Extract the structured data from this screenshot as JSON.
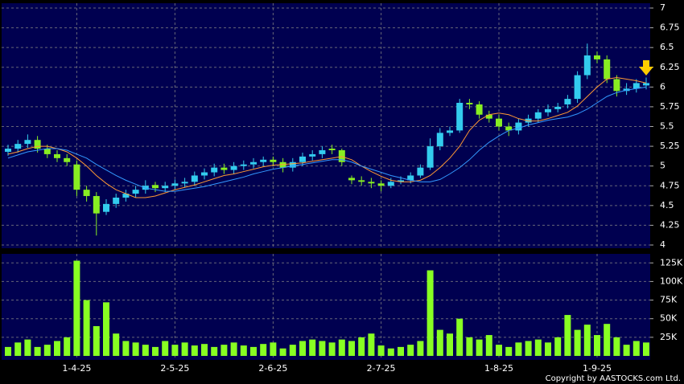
{
  "chart_data": [
    {
      "type": "candlestick",
      "categories": [
        null,
        null,
        null,
        null,
        null,
        null,
        null,
        "1-4-25",
        null,
        null,
        null,
        null,
        null,
        null,
        null,
        null,
        null,
        "2-5-25",
        null,
        null,
        null,
        null,
        null,
        null,
        null,
        null,
        null,
        "2-6-25",
        null,
        null,
        null,
        null,
        null,
        null,
        null,
        null,
        null,
        null,
        "2-7-25",
        null,
        null,
        null,
        null,
        null,
        null,
        null,
        null,
        null,
        null,
        null,
        "1-8-25",
        null,
        null,
        null,
        null,
        null,
        null,
        null,
        null,
        null,
        "1-9-25",
        null,
        null,
        null,
        null,
        null
      ],
      "open": [
        5.18,
        5.22,
        5.28,
        5.33,
        5.22,
        5.15,
        5.1,
        5.02,
        4.7,
        4.62,
        4.42,
        4.52,
        4.6,
        4.65,
        4.7,
        4.76,
        4.72,
        4.75,
        4.78,
        4.8,
        4.88,
        4.92,
        4.98,
        4.95,
        5.0,
        5.02,
        5.05,
        5.08,
        5.05,
        4.98,
        5.05,
        5.12,
        5.15,
        5.22,
        5.2,
        4.85,
        4.82,
        4.8,
        4.78,
        4.75,
        4.8,
        4.82,
        4.88,
        4.98,
        5.25,
        5.42,
        5.45,
        5.8,
        5.78,
        5.65,
        5.6,
        5.5,
        5.45,
        5.55,
        5.6,
        5.68,
        5.72,
        5.78,
        5.85,
        6.15,
        6.4,
        6.35,
        6.1,
        5.95,
        5.98,
        6.02
      ],
      "high": [
        5.27,
        5.33,
        5.4,
        5.38,
        5.27,
        5.2,
        5.15,
        5.07,
        4.75,
        4.67,
        4.58,
        4.65,
        4.7,
        4.75,
        4.82,
        4.8,
        4.8,
        4.83,
        4.85,
        4.93,
        4.97,
        5.03,
        5.03,
        5.05,
        5.07,
        5.1,
        5.12,
        5.12,
        5.1,
        5.1,
        5.17,
        5.2,
        5.25,
        5.27,
        5.22,
        4.88,
        4.87,
        4.85,
        4.82,
        4.85,
        4.87,
        4.92,
        5.02,
        5.35,
        5.48,
        5.5,
        5.85,
        5.85,
        5.82,
        5.7,
        5.65,
        5.55,
        5.6,
        5.65,
        5.72,
        5.78,
        5.8,
        5.9,
        6.2,
        6.55,
        6.45,
        6.4,
        6.15,
        6.05,
        6.1,
        6.12
      ],
      "low": [
        5.13,
        5.17,
        5.23,
        5.17,
        5.1,
        5.05,
        5.0,
        4.62,
        4.55,
        4.12,
        4.38,
        4.47,
        4.55,
        4.6,
        4.65,
        4.67,
        4.67,
        4.7,
        4.73,
        4.75,
        4.83,
        4.87,
        4.9,
        4.9,
        4.95,
        4.97,
        5.0,
        5.0,
        4.92,
        4.93,
        5.0,
        5.07,
        5.1,
        5.15,
        5.0,
        4.77,
        4.75,
        4.72,
        4.68,
        4.72,
        4.77,
        4.78,
        4.85,
        4.95,
        5.2,
        5.38,
        5.42,
        5.72,
        5.6,
        5.55,
        5.45,
        5.38,
        5.4,
        5.5,
        5.55,
        5.63,
        5.68,
        5.73,
        5.8,
        6.1,
        6.3,
        6.05,
        5.88,
        5.9,
        5.93,
        5.97
      ],
      "close": [
        5.22,
        5.28,
        5.33,
        5.22,
        5.15,
        5.1,
        5.05,
        4.7,
        4.62,
        4.4,
        4.52,
        4.6,
        4.65,
        4.7,
        4.75,
        4.72,
        4.75,
        4.78,
        4.8,
        4.88,
        4.92,
        4.98,
        4.95,
        5.0,
        5.02,
        5.05,
        5.08,
        5.05,
        4.98,
        5.05,
        5.12,
        5.15,
        5.2,
        5.2,
        5.05,
        4.82,
        4.8,
        4.78,
        4.75,
        4.8,
        4.82,
        4.88,
        4.98,
        5.25,
        5.42,
        5.45,
        5.8,
        5.78,
        5.65,
        5.6,
        5.5,
        5.45,
        5.55,
        5.6,
        5.68,
        5.72,
        5.75,
        5.85,
        6.15,
        6.4,
        6.35,
        6.1,
        5.95,
        5.98,
        6.05,
        6.05
      ],
      "up_color": "#33ccee",
      "down_color": "#88ee22",
      "series": [
        {
          "color": "#ff9933",
          "values": [
            5.15,
            5.18,
            5.22,
            5.25,
            5.25,
            5.22,
            5.18,
            5.1,
            5.0,
            4.88,
            4.78,
            4.7,
            4.65,
            4.6,
            4.6,
            4.62,
            4.66,
            4.7,
            4.73,
            4.76,
            4.8,
            4.84,
            4.88,
            4.9,
            4.93,
            4.96,
            4.99,
            5.01,
            5.02,
            5.03,
            5.04,
            5.06,
            5.08,
            5.1,
            5.12,
            5.08,
            5.0,
            4.93,
            4.87,
            4.82,
            4.8,
            4.8,
            4.82,
            4.88,
            4.98,
            5.1,
            5.25,
            5.45,
            5.58,
            5.65,
            5.67,
            5.65,
            5.6,
            5.57,
            5.57,
            5.6,
            5.64,
            5.68,
            5.76,
            5.88,
            6.0,
            6.1,
            6.12,
            6.1,
            6.08,
            6.05
          ]
        },
        {
          "color": "#3399ff",
          "values": [
            5.1,
            5.14,
            5.18,
            5.2,
            5.22,
            5.22,
            5.2,
            5.15,
            5.1,
            5.02,
            4.95,
            4.88,
            4.82,
            4.77,
            4.72,
            4.7,
            4.68,
            4.68,
            4.7,
            4.72,
            4.74,
            4.77,
            4.8,
            4.83,
            4.86,
            4.9,
            4.93,
            4.96,
            4.98,
            5.0,
            5.02,
            5.04,
            5.06,
            5.08,
            5.08,
            5.05,
            5.0,
            4.96,
            4.92,
            4.88,
            4.85,
            4.82,
            4.8,
            4.8,
            4.83,
            4.9,
            4.98,
            5.08,
            5.2,
            5.3,
            5.38,
            5.45,
            5.48,
            5.52,
            5.55,
            5.58,
            5.6,
            5.62,
            5.66,
            5.72,
            5.8,
            5.88,
            5.93,
            5.96,
            5.98,
            6.0
          ]
        }
      ],
      "ylim": [
        4,
        7
      ],
      "yticks": [
        4,
        4.25,
        4.5,
        4.75,
        5,
        5.25,
        5.5,
        5.75,
        6,
        6.25,
        6.5,
        6.75,
        7
      ],
      "grid": true
    },
    {
      "type": "bar",
      "values": [
        12000,
        18000,
        22000,
        12000,
        15000,
        20000,
        25000,
        128000,
        75000,
        40000,
        72000,
        30000,
        20000,
        18000,
        15000,
        12000,
        20000,
        15000,
        18000,
        14000,
        16000,
        12000,
        15000,
        18000,
        14000,
        12000,
        16000,
        18000,
        10000,
        15000,
        20000,
        22000,
        20000,
        18000,
        22000,
        20000,
        25000,
        30000,
        14000,
        10000,
        12000,
        15000,
        20000,
        115000,
        35000,
        30000,
        50000,
        25000,
        22000,
        28000,
        15000,
        12000,
        18000,
        20000,
        22000,
        18000,
        25000,
        55000,
        35000,
        42000,
        28000,
        43000,
        25000,
        15000,
        20000,
        18000
      ],
      "color": "#88ff22",
      "ylim": [
        0,
        135000
      ],
      "yticks": [
        {
          "value": 25000,
          "label": "25K"
        },
        {
          "value": 50000,
          "label": "50K"
        },
        {
          "value": 75000,
          "label": "75K"
        },
        {
          "value": 100000,
          "label": "100K"
        },
        {
          "value": 125000,
          "label": "125K"
        }
      ],
      "grid": true
    }
  ],
  "footer": "Copyright by AASTOCKS.com Ltd."
}
